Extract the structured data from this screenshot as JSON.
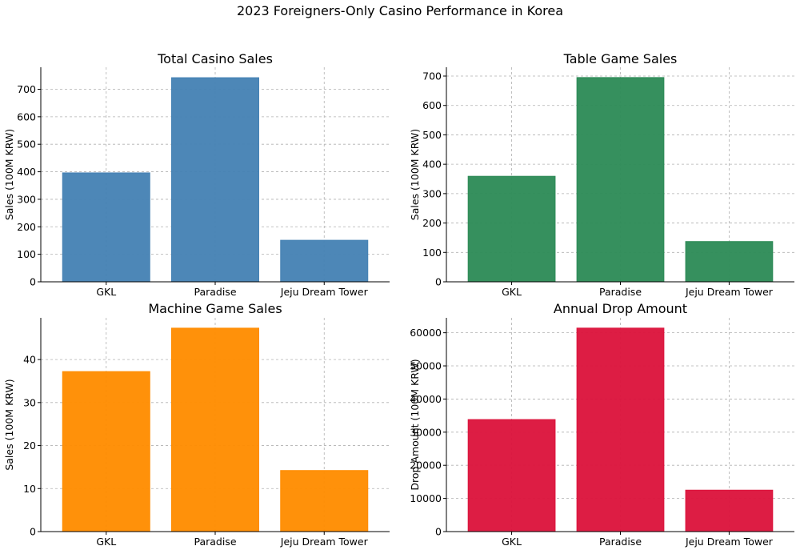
{
  "title": "2023 Foreigners-Only Casino Performance in Korea",
  "chart_data": [
    {
      "type": "bar",
      "title": "Total Casino Sales",
      "ylabel": "Sales (100M KRW)",
      "categories": [
        "GKL",
        "Paradise",
        "Jeju Dream Tower"
      ],
      "values": [
        396,
        742,
        151
      ],
      "ylim": [
        0,
        780
      ],
      "yticks": [
        0,
        100,
        200,
        300,
        400,
        500,
        600,
        700
      ],
      "color": "#4682B4",
      "grid": true
    },
    {
      "type": "bar",
      "title": "Table Game Sales",
      "ylabel": "Sales (100M KRW)",
      "categories": [
        "GKL",
        "Paradise",
        "Jeju Dream Tower"
      ],
      "values": [
        359,
        695,
        137
      ],
      "ylim": [
        0,
        730
      ],
      "yticks": [
        0,
        100,
        200,
        300,
        400,
        500,
        600,
        700
      ],
      "color": "#2E8B57",
      "grid": true
    },
    {
      "type": "bar",
      "title": "Machine Game Sales",
      "ylabel": "Sales (100M KRW)",
      "categories": [
        "GKL",
        "Paradise",
        "Jeju Dream Tower"
      ],
      "values": [
        37.2,
        47.3,
        14.2
      ],
      "ylim": [
        0,
        49.7
      ],
      "yticks": [
        0,
        10,
        20,
        30,
        40
      ],
      "color": "#FF8C00",
      "grid": true
    },
    {
      "type": "bar",
      "title": "Annual Drop Amount",
      "ylabel": "Drop Amount (100M KRW)",
      "categories": [
        "GKL",
        "Paradise",
        "Jeju Dream Tower"
      ],
      "values": [
        33800,
        61400,
        12500
      ],
      "ylim": [
        0,
        64500
      ],
      "yticks": [
        0,
        10000,
        20000,
        30000,
        40000,
        50000,
        60000
      ],
      "color": "#DC143C",
      "grid": true
    }
  ]
}
